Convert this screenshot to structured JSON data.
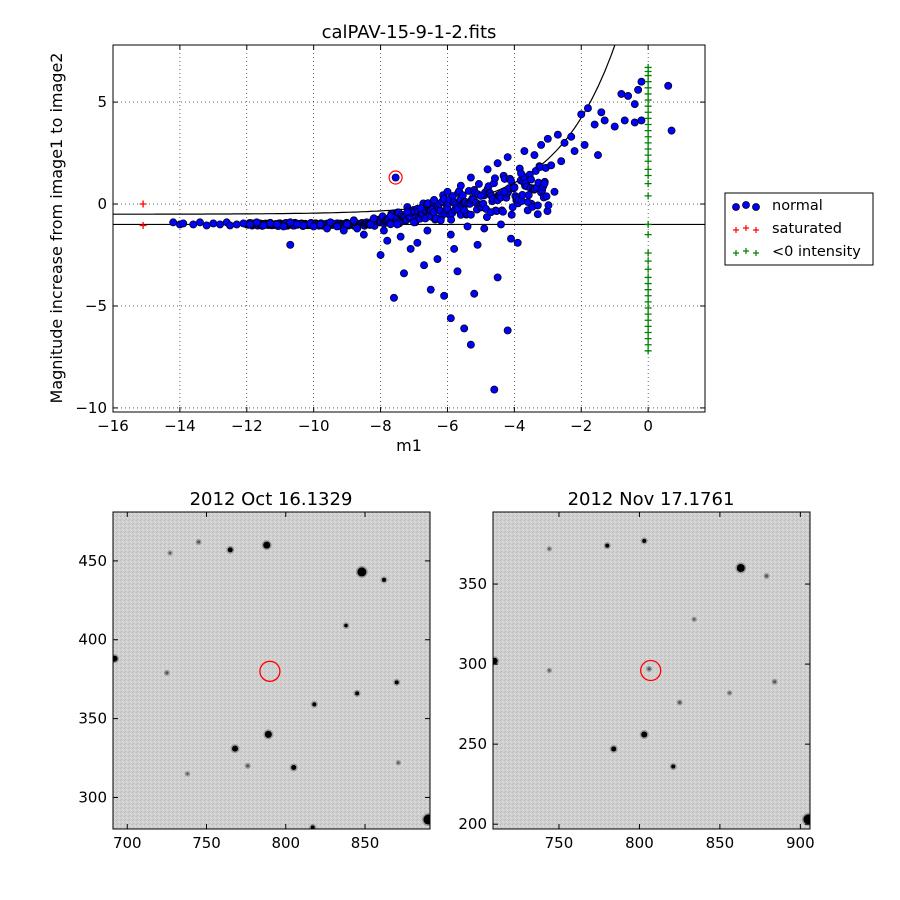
{
  "chart_data": [
    {
      "type": "scatter",
      "title": "calPAV-15-9-1-2.fits",
      "xlabel": "m1",
      "ylabel": "Magnitude increase from image1 to image2",
      "xlim": [
        -16,
        1.7
      ],
      "ylim": [
        -10.2,
        7.8
      ],
      "xticks": [
        -16,
        -14,
        -12,
        -10,
        -8,
        -6,
        -4,
        -2,
        0
      ],
      "yticks": [
        -10,
        -5,
        0,
        5
      ],
      "xtick_labels": [
        "−16",
        "−14",
        "−12",
        "−10",
        "−8",
        "−6",
        "−4",
        "−2",
        "0"
      ],
      "ytick_labels": [
        "−10",
        "−5",
        "0",
        "5"
      ],
      "grid": true,
      "legend_position": "outside-right",
      "series": [
        {
          "name": "normal",
          "marker": "circle",
          "color": "#0000ff",
          "edge_color": "#000000",
          "points": [
            [
              -14.2,
              -0.9
            ],
            [
              -14.0,
              -1.0
            ],
            [
              -13.9,
              -0.95
            ],
            [
              -13.6,
              -1.0
            ],
            [
              -13.4,
              -0.9
            ],
            [
              -13.2,
              -1.05
            ],
            [
              -13.0,
              -0.95
            ],
            [
              -12.8,
              -1.0
            ],
            [
              -12.6,
              -0.9
            ],
            [
              -12.5,
              -1.05
            ],
            [
              -12.3,
              -1.0
            ],
            [
              -12.1,
              -0.95
            ],
            [
              -11.9,
              -1.0
            ],
            [
              -11.7,
              -0.9
            ],
            [
              -11.5,
              -1.05
            ],
            [
              -11.3,
              -0.95
            ],
            [
              -11.1,
              -1.0
            ],
            [
              -10.9,
              -1.1
            ],
            [
              -10.7,
              -0.9
            ],
            [
              -10.7,
              -2.0
            ],
            [
              -10.5,
              -1.0
            ],
            [
              -10.3,
              -1.05
            ],
            [
              -10.1,
              -0.95
            ],
            [
              -10.0,
              -1.1
            ],
            [
              -9.8,
              -1.0
            ],
            [
              -9.6,
              -1.2
            ],
            [
              -9.5,
              -0.9
            ],
            [
              -9.3,
              -1.1
            ],
            [
              -9.1,
              -1.3
            ],
            [
              -9.0,
              -1.0
            ],
            [
              -8.8,
              -0.8
            ],
            [
              -8.7,
              -1.2
            ],
            [
              -8.5,
              -1.5
            ],
            [
              -8.3,
              -1.0
            ],
            [
              -8.2,
              -0.7
            ],
            [
              -8.0,
              -2.5
            ],
            [
              -7.9,
              -1.3
            ],
            [
              -7.8,
              -1.8
            ],
            [
              -7.7,
              -0.6
            ],
            [
              -7.6,
              -4.6
            ],
            [
              -7.5,
              -1.0
            ],
            [
              -7.4,
              -1.6
            ],
            [
              -7.3,
              -3.4
            ],
            [
              -7.2,
              -0.4
            ],
            [
              -7.1,
              -2.2
            ],
            [
              -7.0,
              -0.9
            ],
            [
              -6.9,
              -1.9
            ],
            [
              -6.8,
              -0.2
            ],
            [
              -6.7,
              -3.0
            ],
            [
              -6.6,
              -1.3
            ],
            [
              -6.5,
              -4.2
            ],
            [
              -6.4,
              0.2
            ],
            [
              -6.3,
              -2.7
            ],
            [
              -6.2,
              -0.8
            ],
            [
              -6.1,
              -4.5
            ],
            [
              -6.0,
              0.6
            ],
            [
              -5.9,
              -1.5
            ],
            [
              -5.9,
              -5.6
            ],
            [
              -5.8,
              -2.2
            ],
            [
              -5.7,
              -3.3
            ],
            [
              -5.6,
              0.9
            ],
            [
              -5.5,
              -6.1
            ],
            [
              -5.5,
              -0.3
            ],
            [
              -5.4,
              -1.1
            ],
            [
              -5.3,
              -6.9
            ],
            [
              -5.3,
              1.3
            ],
            [
              -5.2,
              -4.4
            ],
            [
              -5.1,
              -2.0
            ],
            [
              -5.0,
              0.4
            ],
            [
              -4.9,
              -1.2
            ],
            [
              -4.8,
              1.7
            ],
            [
              -4.7,
              -0.4
            ],
            [
              -4.6,
              -9.1
            ],
            [
              -4.5,
              -3.6
            ],
            [
              -4.5,
              2.0
            ],
            [
              -4.4,
              -1.0
            ],
            [
              -4.3,
              0.6
            ],
            [
              -4.2,
              -6.2
            ],
            [
              -4.2,
              2.3
            ],
            [
              -4.1,
              -1.7
            ],
            [
              -4.0,
              0.8
            ],
            [
              -3.9,
              -1.9
            ],
            [
              -3.8,
              1.5
            ],
            [
              -3.7,
              2.6
            ],
            [
              -3.6,
              0.1
            ],
            [
              -3.5,
              1.2
            ],
            [
              -3.4,
              2.4
            ],
            [
              -3.3,
              -0.5
            ],
            [
              -3.2,
              2.9
            ],
            [
              -3.1,
              1.0
            ],
            [
              -3.0,
              3.2
            ],
            [
              -2.9,
              1.9
            ],
            [
              -2.8,
              0.6
            ],
            [
              -2.7,
              3.4
            ],
            [
              -2.6,
              2.1
            ],
            [
              -2.5,
              3.0
            ],
            [
              -2.3,
              3.3
            ],
            [
              -2.2,
              2.6
            ],
            [
              -2.0,
              4.4
            ],
            [
              -1.9,
              2.9
            ],
            [
              -1.8,
              4.7
            ],
            [
              -1.6,
              3.9
            ],
            [
              -1.5,
              2.4
            ],
            [
              -1.4,
              4.5
            ],
            [
              -1.3,
              4.1
            ],
            [
              -1.0,
              3.8
            ],
            [
              -0.8,
              5.4
            ],
            [
              -0.7,
              4.1
            ],
            [
              -0.6,
              5.3
            ],
            [
              -0.4,
              4.0
            ],
            [
              -0.4,
              4.9
            ],
            [
              -0.3,
              5.6
            ],
            [
              -0.2,
              4.1
            ],
            [
              -0.2,
              6.0
            ],
            [
              0.6,
              5.8
            ],
            [
              0.7,
              3.6
            ],
            [
              -7.55,
              1.3
            ]
          ]
        },
        {
          "name": "saturated",
          "marker": "plus",
          "color": "#ff0000",
          "points": [
            [
              -15.1,
              0.0
            ],
            [
              -15.1,
              -1.05
            ]
          ]
        },
        {
          "name": "<0 intensity",
          "marker": "plus",
          "color": "#008000",
          "points": [
            [
              0,
              6.7
            ],
            [
              0,
              6.5
            ],
            [
              0,
              6.3
            ],
            [
              0,
              6.0
            ],
            [
              0,
              5.7
            ],
            [
              0,
              5.4
            ],
            [
              0,
              5.1
            ],
            [
              0,
              4.8
            ],
            [
              0,
              4.5
            ],
            [
              0,
              4.2
            ],
            [
              0,
              3.9
            ],
            [
              0,
              3.6
            ],
            [
              0,
              3.3
            ],
            [
              0,
              3.0
            ],
            [
              0,
              2.7
            ],
            [
              0,
              2.4
            ],
            [
              0,
              2.1
            ],
            [
              0,
              1.7
            ],
            [
              0,
              1.4
            ],
            [
              0,
              1.0
            ],
            [
              0,
              0.4
            ],
            [
              0,
              -1.0
            ],
            [
              0,
              -1.5
            ],
            [
              0,
              -2.4
            ],
            [
              0,
              -2.8
            ],
            [
              0,
              -3.2
            ],
            [
              0,
              -3.6
            ],
            [
              0,
              -3.9
            ],
            [
              0,
              -4.2
            ],
            [
              0,
              -4.5
            ],
            [
              0,
              -4.8
            ],
            [
              0,
              -5.1
            ],
            [
              0,
              -5.4
            ],
            [
              0,
              -5.7
            ],
            [
              0,
              -6.0
            ],
            [
              0,
              -6.3
            ],
            [
              0,
              -6.6
            ],
            [
              0,
              -6.9
            ],
            [
              0,
              -7.2
            ]
          ]
        }
      ],
      "reference_lines": [
        {
          "kind": "horizontal",
          "y": -1.0,
          "color": "#000000"
        },
        {
          "kind": "curve",
          "color": "#000000"
        }
      ],
      "highlight": {
        "x": -7.55,
        "y": 1.3,
        "color": "#ff0000"
      }
    },
    {
      "type": "image",
      "title": "2012 Oct 16.1329",
      "xlim": [
        691,
        891
      ],
      "ylim": [
        280,
        481
      ],
      "xticks": [
        700,
        750,
        800,
        850
      ],
      "yticks": [
        300,
        350,
        400,
        450
      ],
      "xtick_labels": [
        "700",
        "750",
        "800",
        "850"
      ],
      "ytick_labels": [
        "300",
        "350",
        "400",
        "450"
      ],
      "stars": [
        [
          848,
          443,
          4.5
        ],
        [
          788,
          460,
          3.5
        ],
        [
          765,
          457,
          2.5
        ],
        [
          862,
          438,
          2
        ],
        [
          890,
          286,
          5
        ],
        [
          789,
          340,
          3.5
        ],
        [
          768,
          331,
          3
        ],
        [
          805,
          319,
          2.5
        ],
        [
          818,
          359,
          2
        ],
        [
          845,
          366,
          2
        ],
        [
          870,
          373,
          2
        ],
        [
          692,
          388,
          3
        ],
        [
          838,
          409,
          1.8
        ],
        [
          725,
          379,
          1.5
        ],
        [
          745,
          462,
          1.5
        ],
        [
          738,
          315,
          1.2
        ],
        [
          727,
          455,
          1.2
        ],
        [
          871,
          322,
          1.2
        ],
        [
          776,
          320,
          1.5
        ],
        [
          817,
          281,
          2
        ]
      ],
      "circle": {
        "x": 790,
        "y": 380,
        "color": "#ff0000"
      }
    },
    {
      "type": "image",
      "title": "2012 Nov 17.1761",
      "xlim": [
        709,
        906
      ],
      "ylim": [
        197,
        395
      ],
      "xticks": [
        750,
        800,
        850,
        900
      ],
      "yticks": [
        200,
        250,
        300,
        350
      ],
      "xtick_labels": [
        "750",
        "800",
        "850",
        "900"
      ],
      "ytick_labels": [
        "200",
        "250",
        "300",
        "350"
      ],
      "stars": [
        [
          863,
          360,
          4
        ],
        [
          803,
          256,
          3
        ],
        [
          784,
          247,
          2.5
        ],
        [
          780,
          374,
          2
        ],
        [
          803,
          377,
          2
        ],
        [
          879,
          355,
          1.5
        ],
        [
          884,
          289,
          1.5
        ],
        [
          821,
          236,
          2
        ],
        [
          905,
          203,
          5
        ],
        [
          710,
          302,
          3
        ],
        [
          806,
          297,
          1.5
        ],
        [
          825,
          276,
          1.5
        ],
        [
          856,
          282,
          1.2
        ],
        [
          744,
          372,
          1.2
        ],
        [
          744,
          296,
          1.2
        ],
        [
          834,
          328,
          1.2
        ]
      ],
      "circle": {
        "x": 807,
        "y": 296,
        "color": "#ff0000"
      }
    }
  ]
}
